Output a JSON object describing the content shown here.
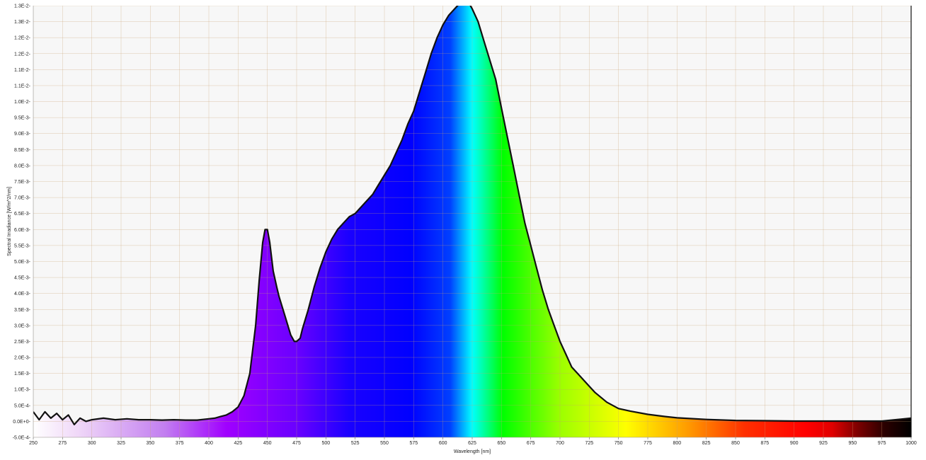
{
  "chart_data": {
    "type": "area",
    "title": "",
    "xlabel": "Wavelength [nm]",
    "ylabel": "Spectral Irradiance [W/m^2/nm]",
    "xlim": [
      250,
      1000
    ],
    "ylim": [
      -0.0005,
      0.013
    ],
    "grid": true,
    "legend": "none",
    "fill": "visible-spectrum gradient",
    "line_color": "#111111",
    "x_ticks": [
      250,
      275,
      300,
      325,
      350,
      375,
      400,
      425,
      450,
      475,
      500,
      525,
      550,
      575,
      600,
      625,
      650,
      675,
      700,
      725,
      750,
      775,
      800,
      825,
      850,
      875,
      900,
      925,
      950,
      975,
      1000
    ],
    "x_tick_labels": [
      "250",
      "275",
      "300",
      "325",
      "350",
      "375",
      "400",
      "425",
      "450",
      "475",
      "500",
      "525",
      "550",
      "575",
      "600",
      "625",
      "650",
      "675",
      "700",
      "725",
      "750",
      "775",
      "800",
      "825",
      "850",
      "875",
      "900",
      "925",
      "950",
      "975",
      "1000"
    ],
    "y_ticks": [
      -0.0005,
      0,
      0.0005,
      0.001,
      0.0015,
      0.002,
      0.0025,
      0.003,
      0.0035,
      0.004,
      0.0045,
      0.005,
      0.0055,
      0.006,
      0.0065,
      0.007,
      0.0075,
      0.008,
      0.0085,
      0.009,
      0.0095,
      0.01,
      0.0105,
      0.011,
      0.0115,
      0.012,
      0.0125,
      0.013
    ],
    "y_tick_labels": [
      "-5.0E-4",
      "0.0E+0",
      "5.0E-4",
      "1.0E-3",
      "1.5E-3",
      "2.0E-3",
      "2.5E-3",
      "3.0E-3",
      "3.5E-3",
      "4.0E-3",
      "4.5E-3",
      "5.0E-3",
      "5.5E-3",
      "6.0E-3",
      "6.5E-3",
      "7.0E-3",
      "7.5E-3",
      "8.0E-3",
      "8.5E-3",
      "9.0E-3",
      "9.5E-3",
      "1.0E-2",
      "1.1E-2",
      "1.1E-2",
      "1.2E-2",
      "1.2E-2",
      "1.3E-2",
      "1.3E-2"
    ],
    "series": [
      {
        "x": [
          250,
          255,
          260,
          265,
          270,
          275,
          280,
          285,
          290,
          295,
          300,
          310,
          320,
          330,
          340,
          350,
          360,
          370,
          380,
          390,
          400,
          405,
          410,
          415,
          420,
          425,
          430,
          435,
          440,
          443,
          446,
          448,
          450,
          452,
          455,
          458,
          460,
          465,
          470,
          473,
          475,
          478,
          480,
          485,
          490,
          495,
          500,
          505,
          510,
          515,
          520,
          525,
          530,
          535,
          540,
          545,
          550,
          555,
          560,
          565,
          570,
          575,
          580,
          585,
          590,
          595,
          600,
          605,
          610,
          615,
          618,
          622,
          625,
          630,
          635,
          640,
          645,
          650,
          655,
          660,
          665,
          670,
          675,
          680,
          685,
          690,
          695,
          700,
          705,
          710,
          715,
          720,
          725,
          730,
          740,
          750,
          760,
          775,
          790,
          800,
          825,
          850,
          875,
          900,
          925,
          950,
          975,
          1000
        ],
        "y": [
          0.0003,
          5e-05,
          0.0003,
          0.0001,
          0.00025,
          5e-05,
          0.0002,
          -0.0001,
          0.0001,
          0.0,
          5e-05,
          0.0001,
          5e-05,
          8e-05,
          5e-05,
          5e-05,
          4e-05,
          5e-05,
          4e-05,
          4e-05,
          8e-05,
          0.0001,
          0.00015,
          0.0002,
          0.0003,
          0.00045,
          0.0008,
          0.0015,
          0.003,
          0.0044,
          0.0056,
          0.006,
          0.006,
          0.0056,
          0.0047,
          0.0042,
          0.0039,
          0.0033,
          0.0027,
          0.0025,
          0.0025,
          0.0026,
          0.0029,
          0.0035,
          0.0042,
          0.0048,
          0.0053,
          0.0057,
          0.006,
          0.0062,
          0.0064,
          0.0065,
          0.0067,
          0.0069,
          0.0071,
          0.0074,
          0.0077,
          0.008,
          0.0084,
          0.0088,
          0.0093,
          0.0097,
          0.0103,
          0.0109,
          0.0115,
          0.012,
          0.0124,
          0.0127,
          0.0129,
          0.0131,
          0.0132,
          0.0131,
          0.0129,
          0.0125,
          0.0119,
          0.0113,
          0.0107,
          0.0098,
          0.0089,
          0.008,
          0.0071,
          0.0062,
          0.0055,
          0.0048,
          0.0041,
          0.0035,
          0.003,
          0.0025,
          0.0021,
          0.0017,
          0.0015,
          0.0013,
          0.0011,
          0.0009,
          0.0006,
          0.0004,
          0.00032,
          0.00022,
          0.00015,
          0.00011,
          6e-05,
          3e-05,
          2e-05,
          1e-05,
          1e-05,
          1e-05,
          1e-05,
          0.0001
        ]
      }
    ]
  }
}
